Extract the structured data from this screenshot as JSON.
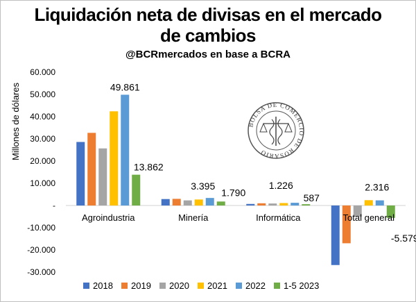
{
  "chart_data": {
    "type": "bar",
    "title_line1": "Liquidación neta de divisas en el mercado",
    "title_line2": "de cambios",
    "subtitle": "@BCRmercados en base a BCRA",
    "ylabel": "Millones de dólares",
    "ylim": [
      -30000,
      60000
    ],
    "yticks": [
      60000,
      50000,
      40000,
      30000,
      20000,
      10000,
      0,
      -10000,
      -20000,
      -30000
    ],
    "ytick_labels": [
      "60.000",
      "50.000",
      "40.000",
      "30.000",
      "20.000",
      "10.000",
      "-",
      "-10.000",
      "-20.000",
      "-30.000"
    ],
    "categories": [
      "Agroindustria",
      "Minería",
      "Informática",
      "Total general"
    ],
    "series": [
      {
        "name": "2018",
        "color": "#4472c4",
        "values": [
          28600,
          2900,
          700,
          -26800
        ]
      },
      {
        "name": "2019",
        "color": "#ed7d31",
        "values": [
          32700,
          3000,
          1000,
          -17000
        ]
      },
      {
        "name": "2020",
        "color": "#a5a5a5",
        "values": [
          25700,
          2300,
          900,
          -5000
        ]
      },
      {
        "name": "2021",
        "color": "#ffc000",
        "values": [
          42400,
          2700,
          1100,
          2400
        ]
      },
      {
        "name": "2022",
        "color": "#5b9bd5",
        "values": [
          49861,
          3395,
          1226,
          2316
        ]
      },
      {
        "name": "1-5 2023",
        "color": "#70ad47",
        "values": [
          13862,
          1790,
          587,
          -5579
        ]
      }
    ],
    "data_labels": [
      {
        "category": 0,
        "series": 4,
        "text": "49.861"
      },
      {
        "category": 0,
        "series": 5,
        "text": "13.862"
      },
      {
        "category": 1,
        "series": 4,
        "text": "3.395"
      },
      {
        "category": 1,
        "series": 5,
        "text": "1.790"
      },
      {
        "category": 2,
        "series": 4,
        "text": "1.226"
      },
      {
        "category": 2,
        "series": 5,
        "text": "587"
      },
      {
        "category": 3,
        "series": 4,
        "text": "2.316"
      },
      {
        "category": 3,
        "series": 5,
        "text": "-5.579"
      }
    ],
    "legend_position": "bottom",
    "seal_text": "BOLSA DE COMERCIO DE ROSARIO"
  }
}
